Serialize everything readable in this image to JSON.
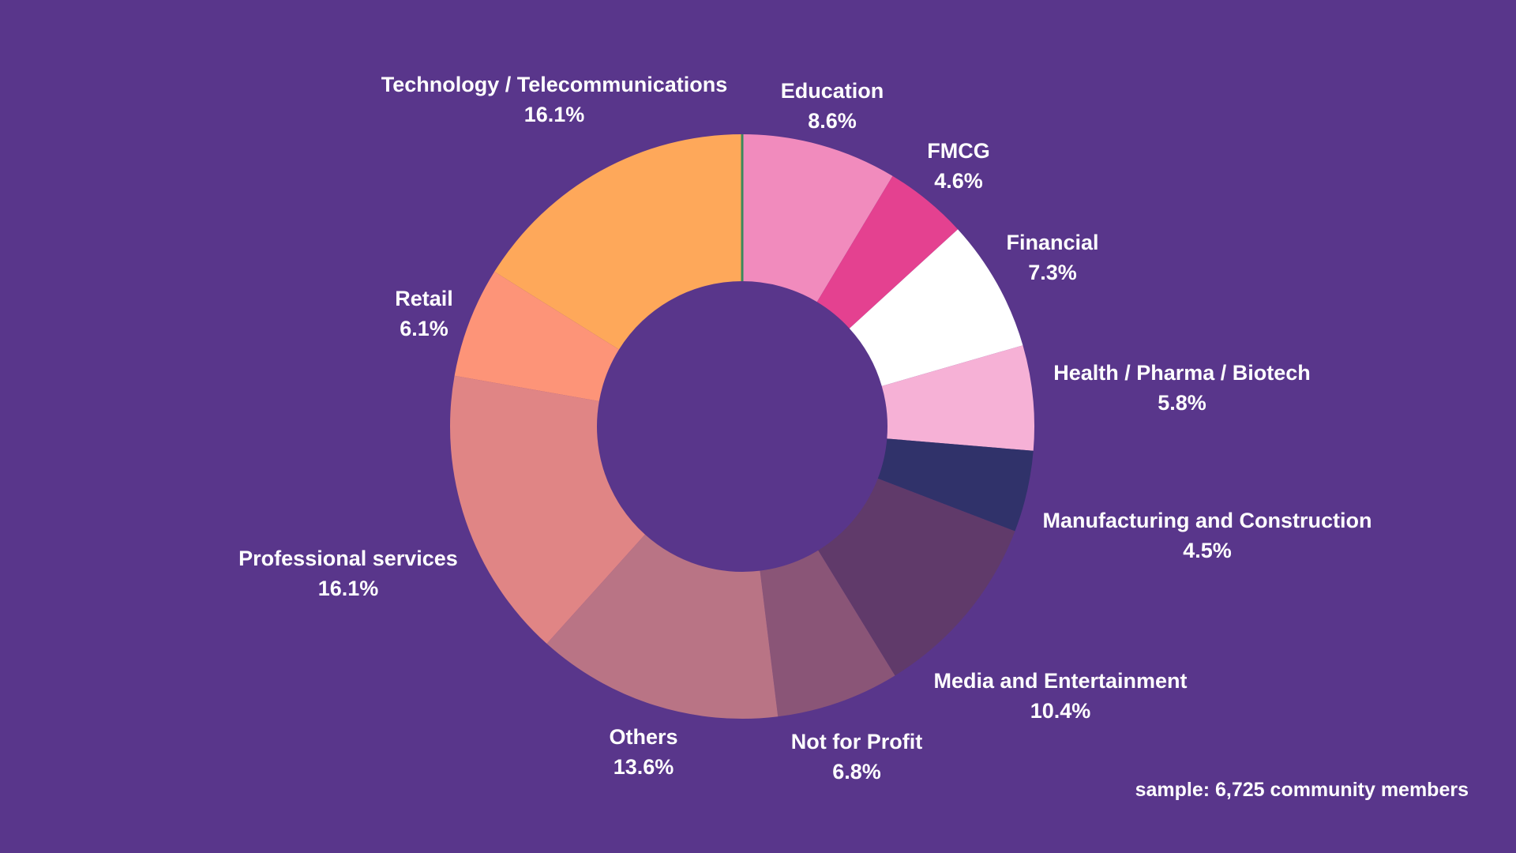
{
  "chart_data": {
    "type": "pie",
    "donut": true,
    "slices": [
      {
        "label": "Education",
        "value": 8.6,
        "display": "8.6%",
        "color": "#f18bbd"
      },
      {
        "label": "FMCG",
        "value": 4.6,
        "display": "4.6%",
        "color": "#e44190"
      },
      {
        "label": "Financial",
        "value": 7.3,
        "display": "7.3%",
        "color": "#ffffff"
      },
      {
        "label": "Health / Pharma / Biotech",
        "value": 5.8,
        "display": "5.8%",
        "color": "#f6b1d6"
      },
      {
        "label": "Manufacturing and Construction",
        "value": 4.5,
        "display": "4.5%",
        "color": "#30326a"
      },
      {
        "label": "Media and Entertainment",
        "value": 10.4,
        "display": "10.4%",
        "color": "#603a6a"
      },
      {
        "label": "Not for Profit",
        "value": 6.8,
        "display": "6.8%",
        "color": "#8a5577"
      },
      {
        "label": "Others",
        "value": 13.6,
        "display": "13.6%",
        "color": "#b97485"
      },
      {
        "label": "Professional services",
        "value": 16.1,
        "display": "16.1%",
        "color": "#e08585"
      },
      {
        "label": "Retail",
        "value": 6.1,
        "display": "6.1%",
        "color": "#fd9478"
      },
      {
        "label": "Technology / Telecommunications",
        "value": 16.1,
        "display": "16.1%",
        "color": "#fea85a"
      }
    ],
    "note": "sample: 6,725 community members"
  },
  "colors": {
    "background": "#59368b",
    "text": "#ffffff",
    "start_marker": "#3b8a5c"
  }
}
